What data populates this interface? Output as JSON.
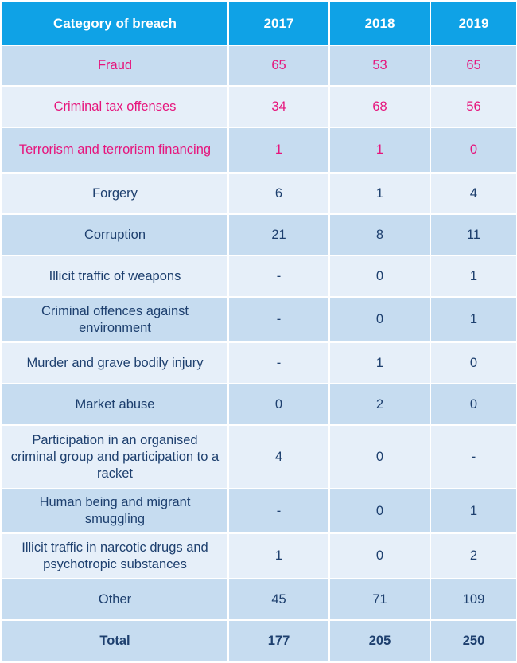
{
  "table": {
    "headers": [
      "Category of breach",
      "2017",
      "2018",
      "2019"
    ],
    "rows": [
      {
        "category": "Fraud",
        "y2017": "65",
        "y2018": "53",
        "y2019": "65",
        "highlight": true
      },
      {
        "category": "Criminal tax offenses",
        "y2017": "34",
        "y2018": "68",
        "y2019": "56",
        "highlight": true
      },
      {
        "category": "Terrorism and terrorism financing",
        "y2017": "1",
        "y2018": "1",
        "y2019": "0",
        "highlight": true
      },
      {
        "category": "Forgery",
        "y2017": "6",
        "y2018": "1",
        "y2019": "4",
        "highlight": false
      },
      {
        "category": "Corruption",
        "y2017": "21",
        "y2018": "8",
        "y2019": "11",
        "highlight": false
      },
      {
        "category": "Illicit traffic of weapons",
        "y2017": "-",
        "y2018": "0",
        "y2019": "1",
        "highlight": false
      },
      {
        "category": "Criminal offences against environment",
        "y2017": "-",
        "y2018": "0",
        "y2019": "1",
        "highlight": false
      },
      {
        "category": "Murder and grave bodily injury",
        "y2017": "-",
        "y2018": "1",
        "y2019": "0",
        "highlight": false
      },
      {
        "category": "Market abuse",
        "y2017": "0",
        "y2018": "2",
        "y2019": "0",
        "highlight": false
      },
      {
        "category": "Participation in an organised criminal group and participation to a racket",
        "y2017": "4",
        "y2018": "0",
        "y2019": "-",
        "highlight": false
      },
      {
        "category": "Human being and migrant smuggling",
        "y2017": "-",
        "y2018": "0",
        "y2019": "1",
        "highlight": false
      },
      {
        "category": "Illicit traffic in narcotic drugs and psychotropic substances",
        "y2017": "1",
        "y2018": "0",
        "y2019": "2",
        "highlight": false
      },
      {
        "category": "Other",
        "y2017": "45",
        "y2018": "71",
        "y2019": "109",
        "highlight": false
      }
    ],
    "total": {
      "label": "Total",
      "y2017": "177",
      "y2018": "205",
      "y2019": "250"
    }
  },
  "colors": {
    "header_bg": "#0fa2e6",
    "highlight_text": "#e6147c",
    "body_text": "#1d3f6e",
    "row_dark": "#c6dcf0",
    "row_light": "#e6eff9"
  }
}
